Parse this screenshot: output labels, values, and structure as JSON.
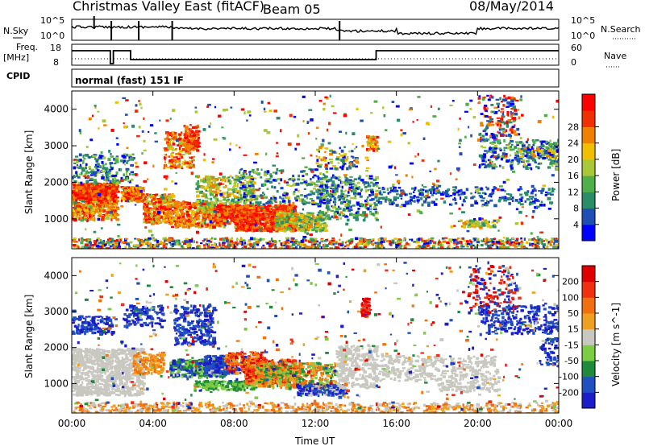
{
  "header": {
    "title": "Christmas Valley East (fitACF)",
    "beam": "Beam 05",
    "date": "08/May/2014"
  },
  "status_panels": {
    "nsky_label": "N.Sky",
    "nsky_ticks": [
      "10^5",
      "10^0"
    ],
    "nsearch_label": "N.Search",
    "nsearch_ticks": [
      "10^5",
      "10^0"
    ],
    "freq_label_1": "Freq.",
    "freq_label_2": "[MHz]",
    "freq_ticks": [
      "18",
      "8"
    ],
    "nave_label": "Nave",
    "nave_ticks": [
      "60",
      "0"
    ],
    "cpid_label": "CPID",
    "cpid_text": "normal (fast) 151 IF"
  },
  "chart_data": [
    {
      "type": "heatmap",
      "panel": "power",
      "ylabel": "Slant Range [km]",
      "yticks": [
        "1000",
        "2000",
        "3000",
        "4000"
      ],
      "ylim": [
        180,
        4500
      ],
      "colorbar_label": "Power [dB]",
      "colorbar_ticks": [
        "4",
        "8",
        "12",
        "16",
        "20",
        "24",
        "28"
      ],
      "colors": [
        "#0000ff",
        "#1f4fb4",
        "#2c8c68",
        "#4fb04a",
        "#a8c83a",
        "#f0c000",
        "#f08000",
        "#f03000",
        "#ff0000"
      ]
    },
    {
      "type": "heatmap",
      "panel": "velocity",
      "ylabel": "Slant Range [km]",
      "yticks": [
        "1000",
        "2000",
        "3000",
        "4000"
      ],
      "ylim": [
        180,
        4500
      ],
      "colorbar_label": "Velocity [m s^-1]",
      "colorbar_ticks": [
        "200",
        "100",
        "50",
        "15",
        "-15",
        "-50",
        "-100",
        "-200"
      ],
      "colors": [
        "#1c1cc8",
        "#2050c0",
        "#1e8a3a",
        "#7ccc44",
        "#c8c8c0",
        "#f0a020",
        "#f07010",
        "#f03010",
        "#e00000"
      ]
    }
  ],
  "x_axis": {
    "label": "Time UT",
    "ticks": [
      "00:00",
      "04:00",
      "08:00",
      "12:00",
      "16:00",
      "20:00",
      "00:00"
    ]
  }
}
